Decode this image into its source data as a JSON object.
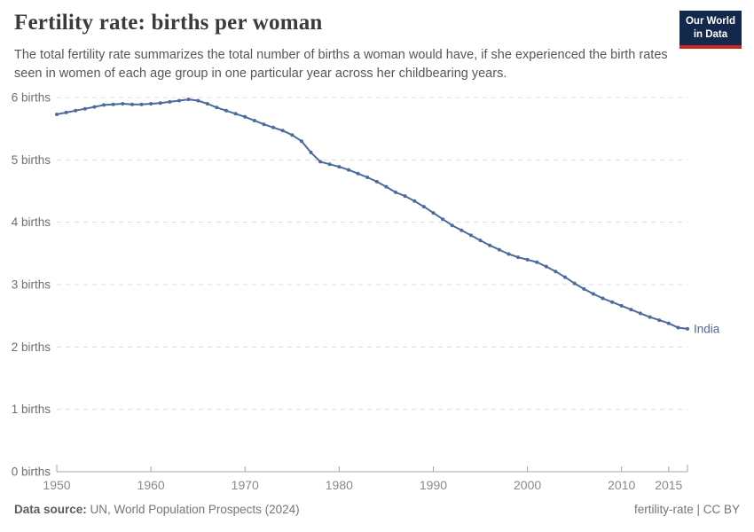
{
  "header": {
    "title": "Fertility rate: births per woman",
    "subtitle": "The total fertility rate summarizes the total number of births a woman would have, if she experienced the birth rates seen in women of each age group in one particular year across her childbearing years.",
    "logo": {
      "line1": "Our World",
      "line2": "in Data",
      "bg_color": "#12294b",
      "accent_color": "#ce261e"
    }
  },
  "footer": {
    "datasource_label": "Data source:",
    "datasource_value": " UN, World Population Prospects (2024)",
    "right_text": "fertility-rate | CC BY"
  },
  "chart_data": {
    "type": "line",
    "title": "Fertility rate: births per woman",
    "xlabel": "",
    "ylabel": "births per woman",
    "xlim": [
      1950,
      2017
    ],
    "ylim": [
      0,
      6
    ],
    "grid": "horizontal-dashed",
    "legend_position": "end-of-line-label",
    "x_ticks": [
      1950,
      1960,
      1970,
      1980,
      1990,
      2000,
      2010,
      2015
    ],
    "x_tick_labels": [
      "1950",
      "1960",
      "1970",
      "1980",
      "1990",
      "2000",
      "2010",
      "2015"
    ],
    "y_ticks": [
      0,
      1,
      2,
      3,
      4,
      5,
      6
    ],
    "y_tick_labels": [
      "0 births",
      "1 births",
      "2 births",
      "3 births",
      "4 births",
      "5 births",
      "6 births"
    ],
    "x": [
      1950,
      1951,
      1952,
      1953,
      1954,
      1955,
      1956,
      1957,
      1958,
      1959,
      1960,
      1961,
      1962,
      1963,
      1964,
      1965,
      1966,
      1967,
      1968,
      1969,
      1970,
      1971,
      1972,
      1973,
      1974,
      1975,
      1976,
      1977,
      1978,
      1979,
      1980,
      1981,
      1982,
      1983,
      1984,
      1985,
      1986,
      1987,
      1988,
      1989,
      1990,
      1991,
      1992,
      1993,
      1994,
      1995,
      1996,
      1997,
      1998,
      1999,
      2000,
      2001,
      2002,
      2003,
      2004,
      2005,
      2006,
      2007,
      2008,
      2009,
      2010,
      2011,
      2012,
      2013,
      2014,
      2015,
      2016,
      2017
    ],
    "series": [
      {
        "name": "India",
        "color": "#4c6a9c",
        "values": [
          5.73,
          5.76,
          5.79,
          5.82,
          5.85,
          5.88,
          5.89,
          5.9,
          5.89,
          5.89,
          5.9,
          5.91,
          5.93,
          5.95,
          5.97,
          5.95,
          5.9,
          5.84,
          5.79,
          5.74,
          5.69,
          5.63,
          5.57,
          5.52,
          5.47,
          5.4,
          5.3,
          5.12,
          4.97,
          4.93,
          4.89,
          4.84,
          4.78,
          4.72,
          4.65,
          4.57,
          4.48,
          4.42,
          4.34,
          4.25,
          4.15,
          4.05,
          3.95,
          3.87,
          3.79,
          3.71,
          3.63,
          3.56,
          3.49,
          3.44,
          3.4,
          3.36,
          3.29,
          3.21,
          3.12,
          3.02,
          2.93,
          2.85,
          2.78,
          2.72,
          2.66,
          2.6,
          2.54,
          2.48,
          2.43,
          2.38,
          2.31,
          2.29
        ]
      }
    ],
    "style": {
      "gridline_color": "#dcdcdc",
      "axis_color": "#a6a6a6",
      "y_label_color": "#6e6e6e",
      "x_label_color": "#8a8a8a"
    }
  }
}
